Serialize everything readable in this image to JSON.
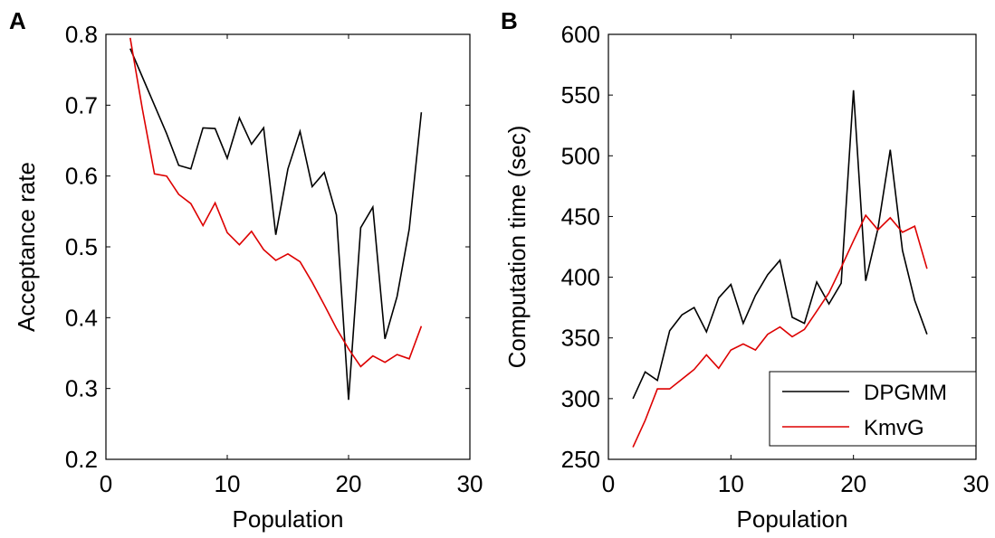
{
  "colors": {
    "dpgmm": "#000000",
    "kmvg": "#dd0000",
    "axis": "#000000",
    "background": "#ffffff"
  },
  "chart_data": [
    {
      "panel": "A",
      "type": "line",
      "xlabel": "Population",
      "ylabel": "Acceptance rate",
      "xlim": [
        0,
        30
      ],
      "ylim": [
        0.2,
        0.8
      ],
      "xticks": [
        0,
        10,
        20,
        30
      ],
      "yticks": [
        0.2,
        0.3,
        0.4,
        0.5,
        0.6,
        0.7,
        0.8
      ],
      "ytick_labels": [
        "0.2",
        "0.3",
        "0.4",
        "0.5",
        "0.6",
        "0.7",
        "0.8"
      ],
      "legend": null,
      "grid": false,
      "x": [
        2,
        3,
        4,
        5,
        6,
        7,
        8,
        9,
        10,
        11,
        12,
        13,
        14,
        15,
        16,
        17,
        18,
        19,
        20,
        21,
        22,
        23,
        24,
        25,
        26
      ],
      "series": [
        {
          "key": "dpgmm",
          "values": [
            0.78,
            0.74,
            0.7,
            0.66,
            0.615,
            0.61,
            0.668,
            0.667,
            0.625,
            0.682,
            0.645,
            0.668,
            0.517,
            0.61,
            0.663,
            0.585,
            0.605,
            0.545,
            0.284,
            0.527,
            0.556,
            0.37,
            0.43,
            0.525,
            0.69
          ]
        },
        {
          "key": "kmvg",
          "values": [
            0.795,
            0.695,
            0.603,
            0.6,
            0.574,
            0.561,
            0.53,
            0.562,
            0.52,
            0.503,
            0.522,
            0.496,
            0.481,
            0.49,
            0.479,
            0.45,
            0.418,
            0.385,
            0.356,
            0.331,
            0.346,
            0.337,
            0.348,
            0.342,
            0.388
          ]
        }
      ]
    },
    {
      "panel": "B",
      "type": "line",
      "xlabel": "Population",
      "ylabel": "Computation time (sec)",
      "xlim": [
        0,
        30
      ],
      "ylim": [
        250,
        600
      ],
      "xticks": [
        0,
        10,
        20,
        30
      ],
      "yticks": [
        250,
        300,
        350,
        400,
        450,
        500,
        550,
        600
      ],
      "ytick_labels": [
        "250",
        "300",
        "350",
        "400",
        "450",
        "500",
        "550",
        "600"
      ],
      "legend": "bottom-right",
      "grid": false,
      "x": [
        2,
        3,
        4,
        5,
        6,
        7,
        8,
        9,
        10,
        11,
        12,
        13,
        14,
        15,
        16,
        17,
        18,
        19,
        20,
        21,
        22,
        23,
        24,
        25,
        26
      ],
      "series": [
        {
          "key": "dpgmm",
          "name": "DPGMM",
          "values": [
            300,
            322,
            315,
            356,
            369,
            375,
            355,
            383,
            394,
            362,
            385,
            402,
            414,
            367,
            362,
            396,
            378,
            395,
            554,
            397,
            440,
            505,
            422,
            381,
            353
          ]
        },
        {
          "key": "kmvg",
          "name": "KmvG",
          "values": [
            260,
            282,
            308,
            308,
            316,
            324,
            336,
            325,
            340,
            345,
            340,
            353,
            359,
            351,
            357,
            372,
            387,
            408,
            430,
            451,
            439,
            449,
            437,
            442,
            407
          ]
        }
      ]
    }
  ]
}
